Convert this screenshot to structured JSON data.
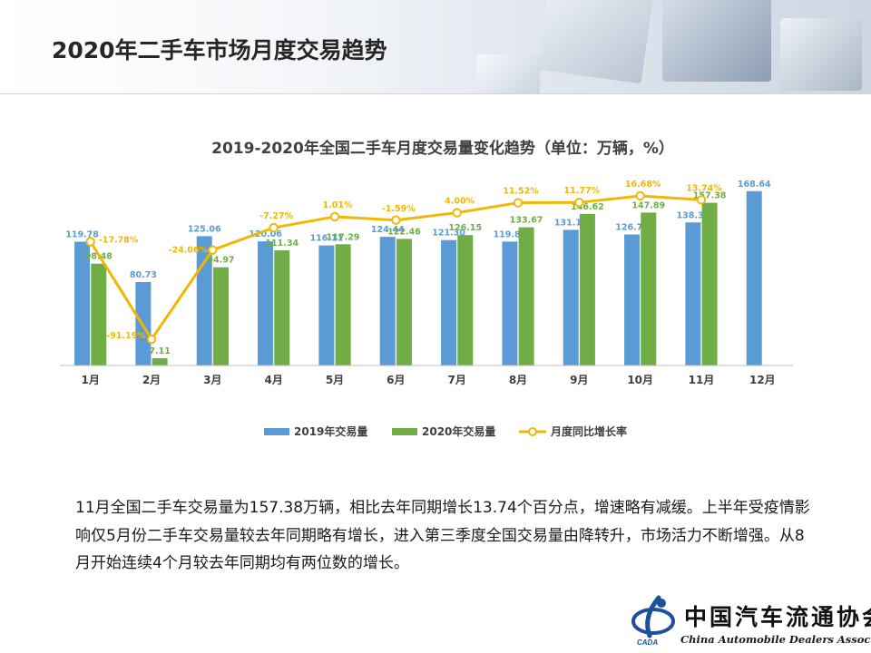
{
  "page": {
    "title": "2020年二手车市场月度交易趋势"
  },
  "chart_data": {
    "type": "bar",
    "title": "2019-2020年全国二手车月度交易量变化趋势（单位：万辆，%）",
    "categories": [
      "1月",
      "2月",
      "3月",
      "4月",
      "5月",
      "6月",
      "7月",
      "8月",
      "9月",
      "10月",
      "11月",
      "12月"
    ],
    "series": [
      {
        "name": "2019年交易量",
        "kind": "bar",
        "color": "#5b9bd5",
        "values": [
          119.78,
          80.73,
          125.06,
          120.06,
          116.11,
          124.44,
          121.3,
          119.86,
          131.18,
          126.74,
          138.37,
          168.64
        ],
        "labels": [
          "119.78",
          "80.73",
          "125.06",
          "120.06",
          "116.11",
          "124.44",
          "121.30",
          "119.86",
          "131.18",
          "126.74",
          "138.37",
          "168.64"
        ]
      },
      {
        "name": "2020年交易量",
        "kind": "bar",
        "color": "#70ad47",
        "values": [
          98.48,
          7.11,
          94.97,
          111.34,
          117.29,
          122.46,
          126.15,
          133.67,
          146.62,
          147.89,
          157.38,
          null
        ],
        "labels": [
          "98.48",
          "7.11",
          "94.97",
          "111.34",
          "117.29",
          "122.46",
          "126.15",
          "133.67",
          "146.62",
          "147.89",
          "157.38",
          null
        ]
      },
      {
        "name": "月度同比增长率",
        "kind": "line",
        "color": "#f2b705",
        "values": [
          -17.78,
          -91.19,
          -24.06,
          -7.27,
          1.01,
          -1.59,
          4.0,
          11.52,
          11.77,
          16.68,
          13.74,
          null
        ],
        "labels": [
          "-17.78%",
          "-91.19%",
          "-24.06%",
          "-7.27%",
          "1.01%",
          "-1.59%",
          "4.00%",
          "11.52%",
          "11.77%",
          "16.68%",
          "13.74%",
          null
        ]
      }
    ],
    "legend_position": "bottom",
    "grid": false
  },
  "summary": {
    "text": "11月全国二手车交易量为157.38万辆，相比去年同期增长13.74个百分点，增速略有减缓。上半年受疫情影响仅5月份二手车交易量较去年同期略有增长，进入第三季度全国交易量由降转升，市场活力不断增强。从8月开始连续4个月较去年同期均有两位数的增长。"
  },
  "logo": {
    "name_cn": "中国汽车流通协会",
    "name_en": "China Automobile Dealers Association",
    "abbr": "CADA"
  },
  "colors": {
    "title": "#262626",
    "bar_2019": "#5b9bd5",
    "bar_2020": "#70ad47",
    "growth_line": "#f2b705",
    "logo_blue": "#1d4f9c"
  }
}
